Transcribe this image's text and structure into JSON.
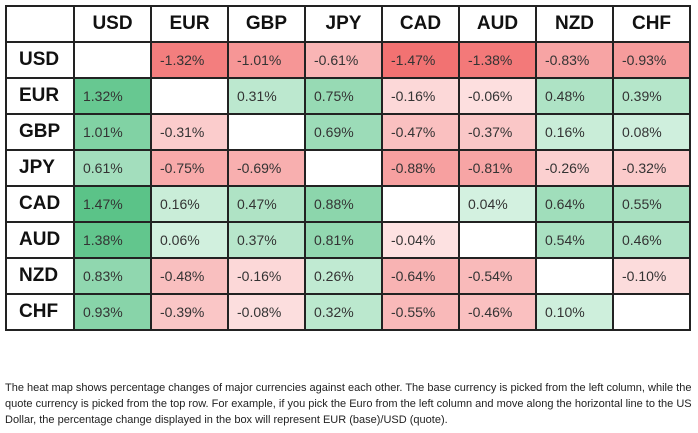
{
  "table": {
    "columns": [
      "USD",
      "EUR",
      "GBP",
      "JPY",
      "CAD",
      "AUD",
      "NZD",
      "CHF"
    ],
    "rows": [
      {
        "label": "USD",
        "cells": [
          null,
          "-1.32%",
          "-1.01%",
          "-0.61%",
          "-1.47%",
          "-1.38%",
          "-0.83%",
          "-0.93%"
        ]
      },
      {
        "label": "EUR",
        "cells": [
          "1.32%",
          null,
          "0.31%",
          "0.75%",
          "-0.16%",
          "-0.06%",
          "0.48%",
          "0.39%"
        ]
      },
      {
        "label": "GBP",
        "cells": [
          "1.01%",
          "-0.31%",
          null,
          "0.69%",
          "-0.47%",
          "-0.37%",
          "0.16%",
          "0.08%"
        ]
      },
      {
        "label": "JPY",
        "cells": [
          "0.61%",
          "-0.75%",
          "-0.69%",
          null,
          "-0.88%",
          "-0.81%",
          "-0.26%",
          "-0.32%"
        ]
      },
      {
        "label": "CAD",
        "cells": [
          "1.47%",
          "0.16%",
          "0.47%",
          "0.88%",
          null,
          "0.04%",
          "0.64%",
          "0.55%"
        ]
      },
      {
        "label": "AUD",
        "cells": [
          "1.38%",
          "0.06%",
          "0.37%",
          "0.81%",
          "-0.04%",
          null,
          "0.54%",
          "0.46%"
        ]
      },
      {
        "label": "NZD",
        "cells": [
          "0.83%",
          "-0.48%",
          "-0.16%",
          "0.26%",
          "-0.64%",
          "-0.54%",
          null,
          "-0.10%"
        ]
      },
      {
        "label": "CHF",
        "cells": [
          "0.93%",
          "-0.39%",
          "-0.08%",
          "0.32%",
          "-0.55%",
          "-0.46%",
          "0.10%",
          null
        ]
      }
    ]
  },
  "footnote": "The heat map shows percentage changes of major currencies against each other. The base currency is picked from the left column, while the quote currency is picked from the top row. For example, if you pick the Euro from the left column and move along the horizontal line to the US Dollar, the percentage change displayed in the box will represent EUR (base)/USD (quote)."
}
